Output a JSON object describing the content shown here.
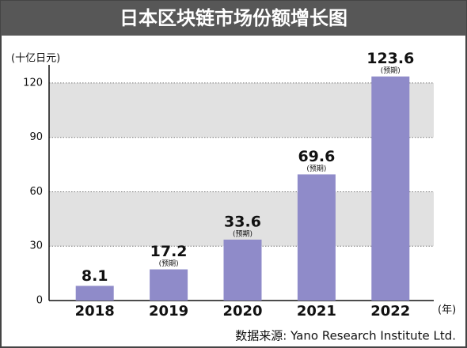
{
  "chart_data": {
    "type": "bar",
    "title": "日本区块链市场份额增长图",
    "y_axis_label": "(十亿日元)",
    "x_axis_label": "(年)",
    "source": "数据来源: Yano Research Institute Ltd.",
    "categories": [
      "2018",
      "2019",
      "2020",
      "2021",
      "2022"
    ],
    "values": [
      8.1,
      17.2,
      33.6,
      69.6,
      123.6
    ],
    "value_notes": [
      null,
      "(预期)",
      "(预期)",
      "(预期)",
      "(预期)"
    ],
    "color": "#8f8bc9",
    "ylim": [
      0,
      130
    ],
    "yticks": [
      0,
      30,
      60,
      90,
      120
    ],
    "grid": true,
    "alternate_bands": true
  }
}
